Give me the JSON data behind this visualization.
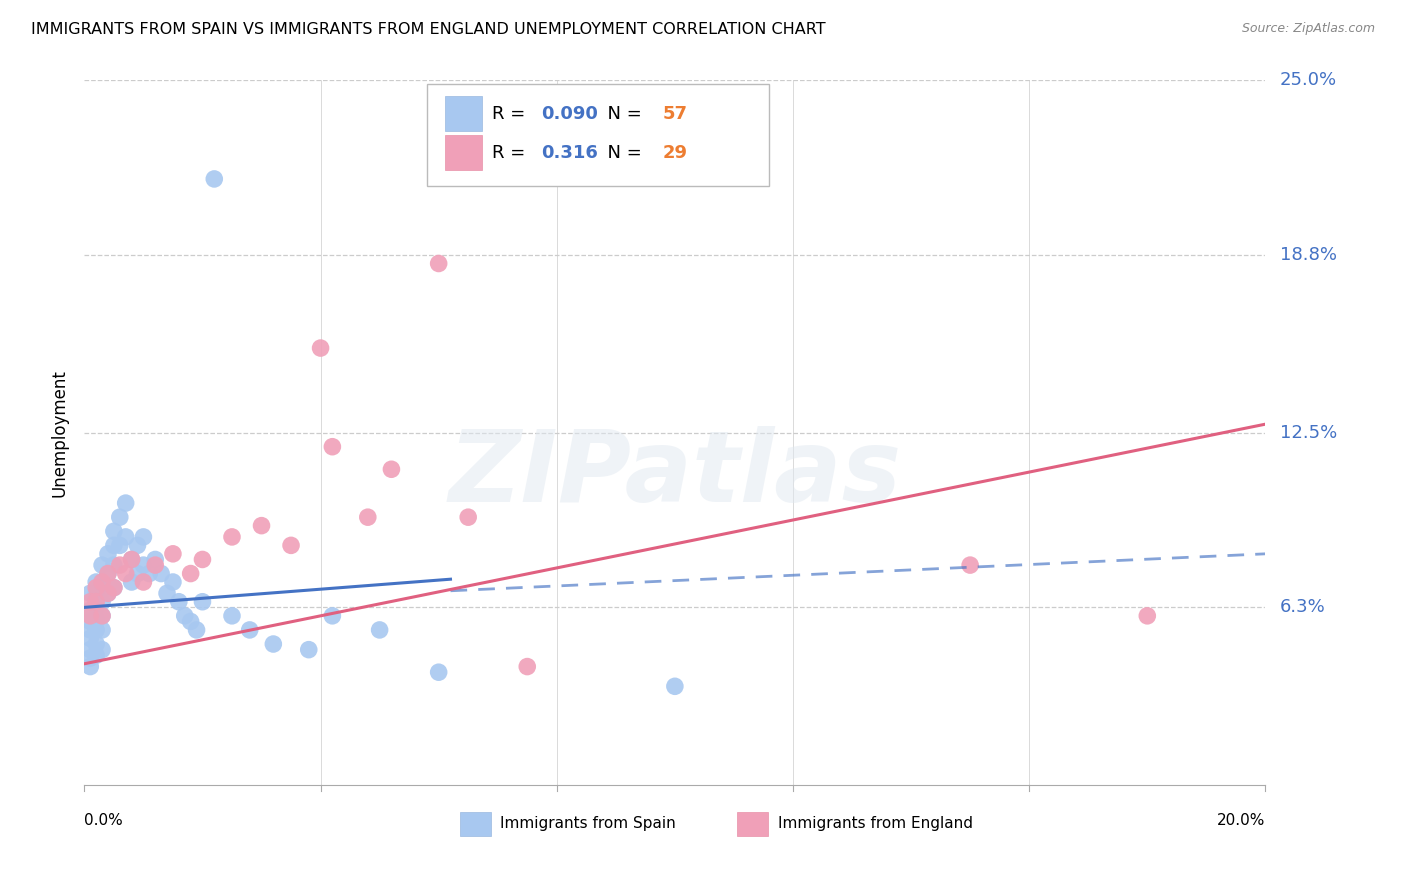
{
  "title": "IMMIGRANTS FROM SPAIN VS IMMIGRANTS FROM ENGLAND UNEMPLOYMENT CORRELATION CHART",
  "source": "Source: ZipAtlas.com",
  "ylabel": "Unemployment",
  "xlim": [
    0.0,
    0.2
  ],
  "ylim": [
    0.0,
    0.25
  ],
  "series1_color": "#a8c8f0",
  "series2_color": "#f0a0b8",
  "series1_label": "Immigrants from Spain",
  "series2_label": "Immigrants from England",
  "series1_R": "0.090",
  "series1_N": "57",
  "series2_R": "0.316",
  "series2_N": "29",
  "legend_R_color": "#4472c4",
  "legend_N_color": "#ed7d31",
  "trendline1_color": "#4472c4",
  "trendline2_color": "#e06080",
  "trendline1_solid_end": 0.062,
  "trendline1_y_at_0": 0.063,
  "trendline1_y_at_end": 0.073,
  "trendline1_y_at_020": 0.082,
  "trendline2_y_at_0": 0.043,
  "trendline2_y_at_020": 0.128,
  "watermark_text": "ZIPatlas",
  "background_color": "#ffffff",
  "grid_color": "#cccccc",
  "spain_x": [
    0.001,
    0.001,
    0.001,
    0.001,
    0.001,
    0.001,
    0.001,
    0.001,
    0.002,
    0.002,
    0.002,
    0.002,
    0.002,
    0.002,
    0.002,
    0.003,
    0.003,
    0.003,
    0.003,
    0.003,
    0.003,
    0.004,
    0.004,
    0.004,
    0.005,
    0.005,
    0.005,
    0.005,
    0.006,
    0.006,
    0.007,
    0.007,
    0.008,
    0.008,
    0.009,
    0.009,
    0.01,
    0.01,
    0.011,
    0.012,
    0.013,
    0.014,
    0.015,
    0.016,
    0.017,
    0.018,
    0.019,
    0.02,
    0.022,
    0.025,
    0.028,
    0.032,
    0.038,
    0.042,
    0.05,
    0.06,
    0.1
  ],
  "spain_y": [
    0.068,
    0.062,
    0.058,
    0.055,
    0.052,
    0.048,
    0.045,
    0.042,
    0.072,
    0.068,
    0.063,
    0.059,
    0.055,
    0.05,
    0.046,
    0.078,
    0.072,
    0.065,
    0.06,
    0.055,
    0.048,
    0.082,
    0.075,
    0.068,
    0.09,
    0.085,
    0.078,
    0.07,
    0.095,
    0.085,
    0.1,
    0.088,
    0.08,
    0.072,
    0.085,
    0.075,
    0.088,
    0.078,
    0.075,
    0.08,
    0.075,
    0.068,
    0.072,
    0.065,
    0.06,
    0.058,
    0.055,
    0.065,
    0.215,
    0.06,
    0.055,
    0.05,
    0.048,
    0.06,
    0.055,
    0.04,
    0.035
  ],
  "england_x": [
    0.001,
    0.001,
    0.002,
    0.002,
    0.003,
    0.003,
    0.004,
    0.004,
    0.005,
    0.006,
    0.007,
    0.008,
    0.01,
    0.012,
    0.015,
    0.018,
    0.02,
    0.025,
    0.03,
    0.035,
    0.04,
    0.042,
    0.048,
    0.052,
    0.06,
    0.065,
    0.075,
    0.15,
    0.18
  ],
  "england_y": [
    0.065,
    0.06,
    0.07,
    0.065,
    0.072,
    0.06,
    0.068,
    0.075,
    0.07,
    0.078,
    0.075,
    0.08,
    0.072,
    0.078,
    0.082,
    0.075,
    0.08,
    0.088,
    0.092,
    0.085,
    0.155,
    0.12,
    0.095,
    0.112,
    0.185,
    0.095,
    0.042,
    0.078,
    0.06
  ]
}
